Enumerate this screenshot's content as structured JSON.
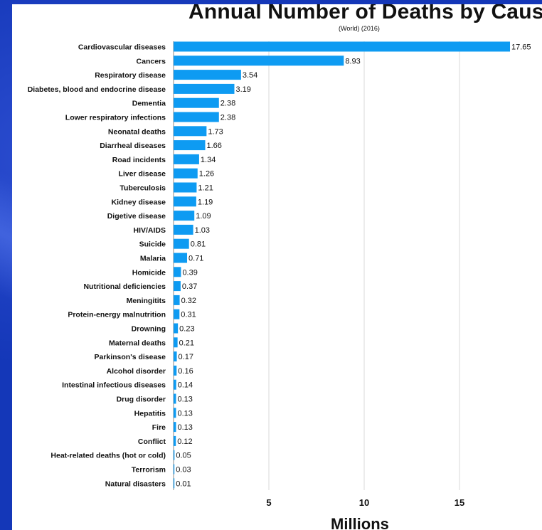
{
  "slide": {
    "background_color": "#1437b8"
  },
  "chart_data": {
    "type": "bar",
    "orientation": "horizontal",
    "title": "Annual Number of Deaths by Caus",
    "subtitle": "(World) (2016)",
    "xlabel": "Millions",
    "ylabel": "",
    "xlim": [
      0,
      18.4
    ],
    "xticks": [
      5,
      10,
      15
    ],
    "grid": true,
    "bar_color": "#0e9bf2",
    "categories": [
      "Cardiovascular diseases",
      "Cancers",
      "Respiratory disease",
      "Diabetes, blood and endocrine disease",
      "Dementia",
      "Lower respiratory infections",
      "Neonatal deaths",
      "Diarrheal diseases",
      "Road incidents",
      "Liver disease",
      "Tuberculosis",
      "Kidney disease",
      "Digetive disease",
      "HIV/AIDS",
      "Suicide",
      "Malaria",
      "Homicide",
      "Nutritional deficiencies",
      "Meningitits",
      "Protein-energy malnutrition",
      "Drowning",
      "Maternal deaths",
      "Parkinson's disease",
      "Alcohol disorder",
      "Intestinal infectious diseases",
      "Drug disorder",
      "Hepatitis",
      "Fire",
      "Conflict",
      "Heat-related deaths (hot or cold)",
      "Terrorism",
      "Natural disasters"
    ],
    "values": [
      17.65,
      8.93,
      3.54,
      3.19,
      2.38,
      2.38,
      1.73,
      1.66,
      1.34,
      1.26,
      1.21,
      1.19,
      1.09,
      1.03,
      0.81,
      0.71,
      0.39,
      0.37,
      0.32,
      0.31,
      0.23,
      0.21,
      0.17,
      0.16,
      0.14,
      0.13,
      0.13,
      0.13,
      0.12,
      0.05,
      0.03,
      0.01
    ],
    "value_labels": [
      "17.65",
      "8.93",
      "3.54",
      "3.19",
      "2.38",
      "2.38",
      "1.73",
      "1.66",
      "1.34",
      "1.26",
      "1.21",
      "1.19",
      "1.09",
      "1.03",
      "0.81",
      "0.71",
      "0.39",
      "0.37",
      "0.32",
      "0.31",
      "0.23",
      "0.21",
      "0.17",
      "0.16",
      "0.14",
      "0.13",
      "0.13",
      "0.13",
      "0.12",
      "0.05",
      "0.03",
      "0.01"
    ]
  }
}
